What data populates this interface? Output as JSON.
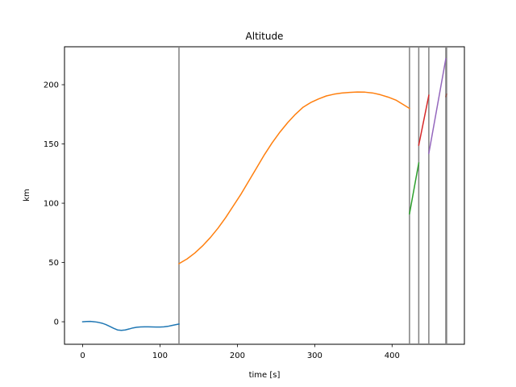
{
  "chart_data": {
    "type": "line",
    "title": "Altitude",
    "xlabel": "time [s]",
    "ylabel": "km",
    "xlim": [
      -23.5,
      493.5
    ],
    "ylim": [
      -19,
      232
    ],
    "xticks": [
      0,
      100,
      200,
      300,
      400
    ],
    "yticks": [
      0,
      50,
      100,
      150,
      200
    ],
    "grid": false,
    "event_lines": {
      "color": "#808080",
      "x": [
        124.5,
        422.5,
        434.5,
        447.5,
        469.5,
        470.5
      ]
    },
    "series": [
      {
        "color": "#1f77b4",
        "x": [
          0,
          5,
          10,
          15,
          20,
          25,
          30,
          35,
          40,
          45,
          50,
          55,
          60,
          65,
          70,
          75,
          80,
          85,
          90,
          95,
          100,
          105,
          110,
          115,
          120,
          124.5
        ],
        "y": [
          0,
          0.2,
          0.3,
          0,
          -0.5,
          -1.2,
          -2.4,
          -3.9,
          -5.5,
          -6.9,
          -7.3,
          -6.9,
          -6.1,
          -5.2,
          -4.6,
          -4.4,
          -4.3,
          -4.3,
          -4.4,
          -4.5,
          -4.5,
          -4.3,
          -3.9,
          -3.2,
          -2.5,
          -1.9
        ]
      },
      {
        "color": "#ff7f0e",
        "x": [
          124.5,
          135,
          145,
          155,
          165,
          175,
          185,
          195,
          205,
          215,
          225,
          235,
          245,
          255,
          265,
          275,
          285,
          295,
          305,
          315,
          325,
          335,
          345,
          355,
          365,
          375,
          385,
          395,
          405,
          415,
          422.5
        ],
        "y": [
          49,
          53,
          58,
          64,
          71,
          79,
          88,
          98,
          108,
          119,
          130,
          141,
          151,
          160,
          168,
          175,
          181,
          185,
          188,
          190.5,
          192,
          193,
          193.5,
          193.8,
          193.7,
          193,
          191.5,
          189.5,
          187,
          183,
          180
        ]
      },
      {
        "color": "#2ca02c",
        "x": [
          422.5,
          434.5
        ],
        "y": [
          91,
          134
        ]
      },
      {
        "color": "#d62728",
        "x": [
          434.5,
          447.5
        ],
        "y": [
          149,
          191
        ]
      },
      {
        "color": "#9467bd",
        "x": [
          447.5,
          469.5
        ],
        "y": [
          142,
          222
        ]
      },
      {
        "color": "#8c564b",
        "x": [
          469.5,
          470.5
        ],
        "y": [
          190,
          192
        ]
      }
    ]
  }
}
